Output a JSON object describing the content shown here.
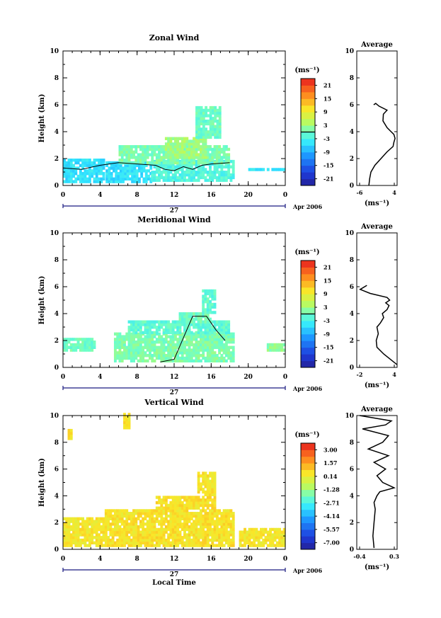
{
  "panels": [
    {
      "title": "Zonal Wind",
      "ylabel": "Height (km)",
      "x_ticks": [
        "0",
        "4",
        "8",
        "12",
        "16",
        "20",
        "0"
      ],
      "y_ticks": [
        "0",
        "2",
        "4",
        "6",
        "8",
        "10"
      ],
      "date_label": "27",
      "month_label": "Apr 2006",
      "xlabel": "",
      "colorbar": {
        "unit_label": "(ms⁻¹)",
        "ticks": [
          "21",
          "15",
          "9",
          "3",
          "-3",
          "-9",
          "-15",
          "-21"
        ],
        "range": [
          -24,
          24
        ]
      },
      "average": {
        "title": "Average",
        "x_ticks": [
          "-6",
          "4"
        ],
        "xlabel": "(ms⁻¹)",
        "y_ticks": [
          "0",
          "2",
          "4",
          "6",
          "8",
          "10"
        ]
      }
    },
    {
      "title": "Meridional Wind",
      "ylabel": "Height (km)",
      "x_ticks": [
        "0",
        "4",
        "8",
        "12",
        "16",
        "20",
        "0"
      ],
      "y_ticks": [
        "0",
        "2",
        "4",
        "6",
        "8",
        "10"
      ],
      "date_label": "27",
      "month_label": "Apr 2006",
      "xlabel": "",
      "colorbar": {
        "unit_label": "(ms⁻¹)",
        "ticks": [
          "21",
          "15",
          "9",
          "3",
          "-3",
          "-9",
          "-15",
          "-21"
        ],
        "range": [
          -24,
          24
        ]
      },
      "average": {
        "title": "Average",
        "x_ticks": [
          "-2",
          "4"
        ],
        "xlabel": "(ms⁻¹)",
        "y_ticks": [
          "0",
          "2",
          "4",
          "6",
          "8",
          "10"
        ]
      }
    },
    {
      "title": "Vertical Wind",
      "ylabel": "Height (km)",
      "x_ticks": [
        "0",
        "4",
        "8",
        "12",
        "16",
        "20",
        "0"
      ],
      "y_ticks": [
        "0",
        "2",
        "4",
        "6",
        "8",
        "10"
      ],
      "date_label": "27",
      "month_label": "Apr 2006",
      "xlabel": "Local Time",
      "colorbar": {
        "unit_label": "(ms⁻¹)",
        "ticks": [
          "3.00",
          "1.57",
          "0.14",
          "-1.28",
          "-2.71",
          "-4.14",
          "-5.57",
          "-7.00"
        ],
        "range": [
          -7.7,
          3.7
        ]
      },
      "average": {
        "title": "Average",
        "x_ticks": [
          "-0.4",
          "0.3"
        ],
        "xlabel": "(ms⁻¹)",
        "y_ticks": [
          "0",
          "2",
          "4",
          "6",
          "8",
          "10"
        ]
      }
    }
  ],
  "chart_data": [
    {
      "type": "heatmap",
      "title": "Zonal Wind",
      "xlabel": "",
      "ylabel": "Height (km)",
      "xlim": [
        0,
        24
      ],
      "ylim": [
        0,
        10
      ],
      "value_range": [
        -24,
        24
      ],
      "regions": [
        {
          "x": [
            0,
            4.5
          ],
          "y": [
            0.2,
            1.9
          ],
          "value": -5
        },
        {
          "x": [
            4.6,
            9.5
          ],
          "y": [
            0.2,
            1.6
          ],
          "value": -5
        },
        {
          "x": [
            9.5,
            18.5
          ],
          "y": [
            0.3,
            1.7
          ],
          "value": -2
        },
        {
          "x": [
            6.0,
            18.0
          ],
          "y": [
            1.6,
            3.0
          ],
          "value": 1
        },
        {
          "x": [
            11,
            15.5
          ],
          "y": [
            2.0,
            3.6
          ],
          "value": 3
        },
        {
          "x": [
            14.3,
            17.0
          ],
          "y": [
            3.5,
            5.8
          ],
          "value": 0
        },
        {
          "x": [
            20,
            23.8
          ],
          "y": [
            1.1,
            1.3
          ],
          "value": -4
        }
      ],
      "zero_contour": [
        [
          0.0,
          1.3
        ],
        [
          2.0,
          1.2
        ],
        [
          4.0,
          1.5
        ],
        [
          6.0,
          1.7
        ],
        [
          8.0,
          1.6
        ],
        [
          10.0,
          1.5
        ],
        [
          11.0,
          1.2
        ],
        [
          12.0,
          1.1
        ],
        [
          13.0,
          1.4
        ],
        [
          14.0,
          1.2
        ],
        [
          15.0,
          1.5
        ],
        [
          16.0,
          1.6
        ],
        [
          18.0,
          1.7
        ]
      ]
    },
    {
      "type": "line",
      "title": "Average",
      "xlabel": "(ms⁻¹)",
      "ylabel": "Height (km)",
      "xlim": [
        -6,
        4
      ],
      "ylim": [
        0,
        10
      ],
      "x": [
        -3,
        -2.8,
        -2.5,
        -1.5,
        0,
        1.5,
        3,
        3.2,
        3.5,
        3.2,
        2.5,
        1.5,
        0.5,
        0.6,
        1.5,
        -0.5,
        -1.3,
        -1.8
      ],
      "y": [
        0,
        0.5,
        1,
        1.5,
        2,
        2.5,
        2.9,
        3.2,
        3.5,
        3.8,
        4.0,
        4.3,
        4.8,
        5.3,
        5.6,
        5.9,
        6.1,
        6.0
      ]
    },
    {
      "type": "heatmap",
      "title": "Meridional Wind",
      "xlabel": "",
      "ylabel": "Height (km)",
      "xlim": [
        0,
        24
      ],
      "ylim": [
        0,
        10
      ],
      "value_range": [
        -24,
        24
      ],
      "regions": [
        {
          "x": [
            0,
            3.5
          ],
          "y": [
            1.2,
            2.0
          ],
          "value": 0
        },
        {
          "x": [
            5.5,
            18.5
          ],
          "y": [
            0.4,
            2.5
          ],
          "value": 1
        },
        {
          "x": [
            7,
            18
          ],
          "y": [
            2.5,
            3.4
          ],
          "value": -1
        },
        {
          "x": [
            12.5,
            16.0
          ],
          "y": [
            3.3,
            4.0
          ],
          "value": 0
        },
        {
          "x": [
            15.0,
            16.5
          ],
          "y": [
            4.0,
            5.7
          ],
          "value": -1
        },
        {
          "x": [
            22,
            24
          ],
          "y": [
            1.2,
            1.6
          ],
          "value": 2
        }
      ],
      "zero_contour": [
        [
          10.5,
          0.4
        ],
        [
          12.0,
          0.6
        ],
        [
          14.0,
          3.8
        ],
        [
          15.5,
          3.8
        ],
        [
          16.5,
          2.8
        ],
        [
          17.5,
          2.0
        ]
      ]
    },
    {
      "type": "line",
      "title": "Average",
      "xlabel": "(ms⁻¹)",
      "ylabel": "Height (km)",
      "xlim": [
        -2,
        4
      ],
      "ylim": [
        0,
        10
      ],
      "x": [
        4.0,
        3.0,
        2.0,
        1.0,
        0.9,
        1.2,
        1.0,
        1.5,
        2.0,
        1.8,
        2.5,
        2.8,
        2.3,
        2.9,
        2.5,
        0.0,
        -1.5,
        -0.5
      ],
      "y": [
        0.2,
        0.6,
        1.0,
        1.5,
        2.0,
        2.5,
        3.0,
        3.3,
        3.7,
        4.0,
        4.3,
        4.6,
        4.8,
        5.0,
        5.2,
        5.5,
        5.8,
        6.1
      ]
    },
    {
      "type": "heatmap",
      "title": "Vertical Wind",
      "xlabel": "Local Time",
      "ylabel": "Height (km)",
      "xlim": [
        0,
        24
      ],
      "ylim": [
        0,
        10
      ],
      "value_range": [
        -7.7,
        3.7
      ],
      "regions": [
        {
          "x": [
            0,
            4.5
          ],
          "y": [
            0.2,
            2.2
          ],
          "value": 0.4
        },
        {
          "x": [
            4.5,
            18.5
          ],
          "y": [
            0.2,
            3.0
          ],
          "value": 0.5
        },
        {
          "x": [
            10,
            16.5
          ],
          "y": [
            3.0,
            4.0
          ],
          "value": 0.5
        },
        {
          "x": [
            14.5,
            16.5
          ],
          "y": [
            4.0,
            5.8
          ],
          "value": 0.4
        },
        {
          "x": [
            19,
            24
          ],
          "y": [
            0.2,
            1.5
          ],
          "value": 0.4
        },
        {
          "x": [
            6.5,
            7.2
          ],
          "y": [
            9.0,
            10.0
          ],
          "value": 0.5
        },
        {
          "x": [
            0.5,
            1.0
          ],
          "y": [
            8.2,
            8.9
          ],
          "value": 0.5
        }
      ]
    },
    {
      "type": "line",
      "title": "Average",
      "xlabel": "(ms⁻¹)",
      "ylabel": "Height (km)",
      "xlim": [
        -0.4,
        0.3
      ],
      "ylim": [
        0,
        10
      ],
      "x": [
        -0.1,
        -0.12,
        -0.1,
        -0.08,
        -0.1,
        -0.05,
        0.0,
        0.25,
        0.05,
        -0.05,
        0.1,
        -0.1,
        0.15,
        -0.2,
        0.05,
        0.15,
        -0.3,
        0.1,
        0.2,
        -0.35
      ],
      "y": [
        0.1,
        1.0,
        2.0,
        3.0,
        3.5,
        4.0,
        4.3,
        4.6,
        5.0,
        5.5,
        6.0,
        6.5,
        7.0,
        7.5,
        8.0,
        8.5,
        9.0,
        9.3,
        9.6,
        10.0
      ]
    }
  ]
}
